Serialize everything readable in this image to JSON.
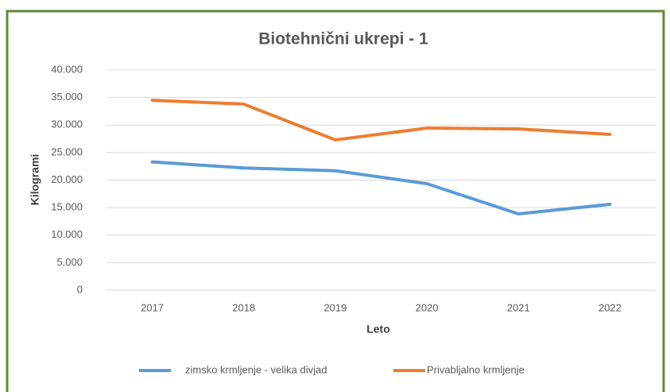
{
  "chart_data": {
    "type": "line",
    "title": "Biotehnični ukrepi - 1",
    "x_label": "Leto",
    "y_label": "Kilogrami",
    "categories": [
      "2017",
      "2018",
      "2019",
      "2020",
      "2021",
      "2022"
    ],
    "series": [
      {
        "name": "zimsko krmljenje - velika divjad",
        "color": "#5b9bd5",
        "values": [
          23300,
          22200,
          21700,
          19350,
          13860,
          15600
        ]
      },
      {
        "name": "Privabljalno krmljenje",
        "color": "#ed7d31",
        "values": [
          34500,
          33800,
          27300,
          29450,
          29300,
          28300
        ]
      }
    ],
    "ylim": [
      0,
      40000
    ],
    "yticks": [
      0,
      {
        "value": 5000,
        "label": "5.000"
      },
      {
        "value": 10000,
        "label": "10.000"
      },
      {
        "value": 15000,
        "label": "15.000"
      },
      {
        "value": 20000,
        "label": "20.000"
      },
      {
        "value": 25000,
        "label": "25.000"
      },
      {
        "value": 30000,
        "label": "30.000"
      },
      {
        "value": 35000,
        "label": "35.000"
      },
      {
        "value": 40000,
        "label": "40.000"
      }
    ],
    "grid": true,
    "legend": "bottom"
  }
}
